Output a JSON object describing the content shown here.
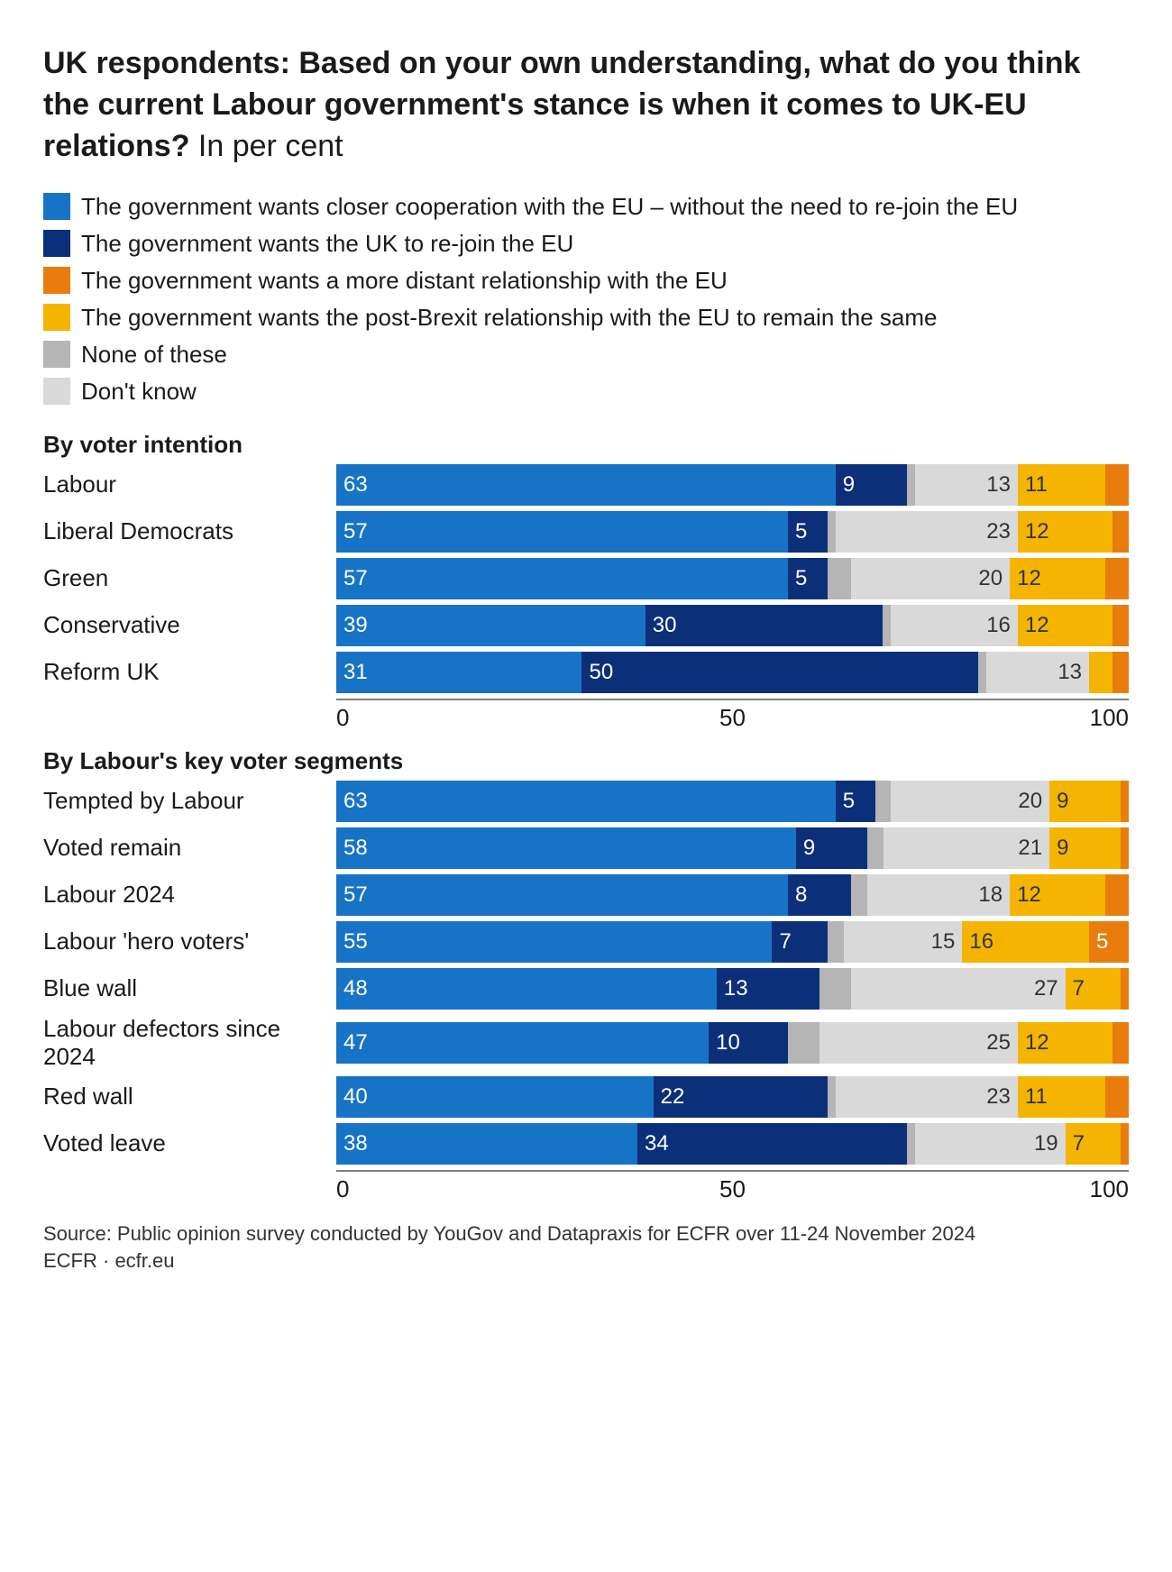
{
  "title_bold": "UK respondents: Based on your own understanding, what do you think the current Labour government's stance is when it comes to UK-EU relations?",
  "title_sub": " In per cent",
  "colors": {
    "closer": "#1773c6",
    "rejoin": "#0c2f7a",
    "distant": "#e87d0d",
    "same": "#f5b400",
    "none": "#b5b5b5",
    "dontknow": "#d9d9d9"
  },
  "legend": [
    {
      "key": "closer",
      "label": "The government wants closer cooperation with the EU – without the need to re-join the EU"
    },
    {
      "key": "rejoin",
      "label": "The government wants the UK to re-join the EU"
    },
    {
      "key": "distant",
      "label": "The government wants a more distant relationship with the EU"
    },
    {
      "key": "same",
      "label": "The government wants the post-Brexit relationship with the EU to remain the same"
    },
    {
      "key": "none",
      "label": "None of these"
    },
    {
      "key": "dontknow",
      "label": "Don't know"
    }
  ],
  "segment_order": [
    "closer",
    "rejoin",
    "none",
    "dontknow",
    "same",
    "distant"
  ],
  "light_text": [
    "none",
    "dontknow",
    "same"
  ],
  "sections": [
    {
      "title": "By voter intention",
      "rows": [
        {
          "label": "Labour",
          "vals": {
            "closer": 63,
            "rejoin": 9,
            "none": 1,
            "dontknow": 13,
            "same": 11,
            "distant": 3
          }
        },
        {
          "label": "Liberal Democrats",
          "vals": {
            "closer": 57,
            "rejoin": 5,
            "none": 1,
            "dontknow": 23,
            "same": 12,
            "distant": 2
          }
        },
        {
          "label": "Green",
          "vals": {
            "closer": 57,
            "rejoin": 5,
            "none": 3,
            "dontknow": 20,
            "same": 12,
            "distant": 3
          }
        },
        {
          "label": "Conservative",
          "vals": {
            "closer": 39,
            "rejoin": 30,
            "none": 1,
            "dontknow": 16,
            "same": 12,
            "distant": 2
          }
        },
        {
          "label": "Reform UK",
          "vals": {
            "closer": 31,
            "rejoin": 50,
            "none": 1,
            "dontknow": 13,
            "same": 3,
            "distant": 2
          }
        }
      ],
      "axis": {
        "min": 0,
        "mid": 50,
        "max": 100
      }
    },
    {
      "title": "By Labour's key voter segments",
      "rows": [
        {
          "label": "Tempted by Labour",
          "vals": {
            "closer": 63,
            "rejoin": 5,
            "none": 2,
            "dontknow": 20,
            "same": 9,
            "distant": 1
          }
        },
        {
          "label": "Voted remain",
          "vals": {
            "closer": 58,
            "rejoin": 9,
            "none": 2,
            "dontknow": 21,
            "same": 9,
            "distant": 1
          }
        },
        {
          "label": "Labour 2024",
          "vals": {
            "closer": 57,
            "rejoin": 8,
            "none": 2,
            "dontknow": 18,
            "same": 12,
            "distant": 3
          }
        },
        {
          "label": "Labour 'hero voters'",
          "vals": {
            "closer": 55,
            "rejoin": 7,
            "none": 2,
            "dontknow": 15,
            "same": 16,
            "distant": 5
          }
        },
        {
          "label": "Blue wall",
          "vals": {
            "closer": 48,
            "rejoin": 13,
            "none": 4,
            "dontknow": 27,
            "same": 7,
            "distant": 1
          }
        },
        {
          "label": "Labour defectors since 2024",
          "vals": {
            "closer": 47,
            "rejoin": 10,
            "none": 4,
            "dontknow": 25,
            "same": 12,
            "distant": 2
          }
        },
        {
          "label": "Red wall",
          "vals": {
            "closer": 40,
            "rejoin": 22,
            "none": 1,
            "dontknow": 23,
            "same": 11,
            "distant": 3
          }
        },
        {
          "label": "Voted leave",
          "vals": {
            "closer": 38,
            "rejoin": 34,
            "none": 1,
            "dontknow": 19,
            "same": 7,
            "distant": 1
          }
        }
      ],
      "axis": {
        "min": 0,
        "mid": 50,
        "max": 100
      }
    }
  ],
  "label_threshold": 5,
  "footer_line1": "Source: Public opinion survey conducted by YouGov and Datapraxis for ECFR over 11-24 November 2024",
  "footer_line2": "ECFR · ecfr.eu"
}
